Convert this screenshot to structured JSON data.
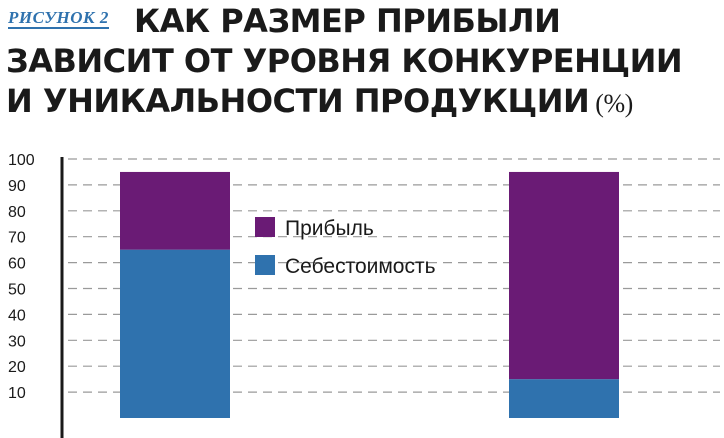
{
  "header": {
    "figure_label": "РИСУНОК 2",
    "title_lines": [
      "КАК РАЗМЕР ПРИБЫЛИ",
      "ЗАВИСИТ ОТ УРОВНЯ КОНКУРЕНЦИИ",
      "И УНИКАЛЬНОСТИ ПРОДУКЦИИ"
    ],
    "unit": "(%)"
  },
  "chart_data": {
    "type": "bar",
    "stacked": true,
    "categories": [
      "",
      ""
    ],
    "series": [
      {
        "name": "Себестоимость",
        "values": [
          65,
          15
        ],
        "color": "#2f72ae"
      },
      {
        "name": "Прибыль",
        "values": [
          30,
          80
        ],
        "color": "#6a1b75"
      }
    ],
    "ylim": [
      0,
      100
    ],
    "yticks": [
      10,
      20,
      30,
      40,
      50,
      60,
      70,
      80,
      90,
      100
    ],
    "grid": "dashed horizontal",
    "legend_placement": "upper-center",
    "legend_order": [
      "Прибыль",
      "Себестоимость"
    ]
  }
}
